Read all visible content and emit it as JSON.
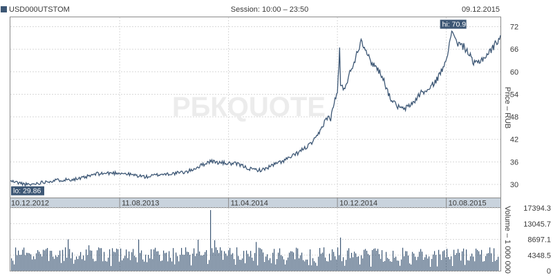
{
  "header": {
    "ticker": "USD000UTSTOM",
    "session": "Session: 10:00 – 23:50",
    "date": "09.12.2015"
  },
  "watermark": "РБКQUOTE",
  "colors": {
    "line": "#3d5775",
    "bars": "#3d5775",
    "date_band": "#c9d3dd",
    "tag_bg": "#3d5775"
  },
  "chart_data": [
    {
      "type": "line",
      "ylabel": "Price – RUB",
      "x_ticks": [
        "10.12.2012",
        "11.08.2013",
        "11.04.2014",
        "10.12.2014",
        "10.08.2015"
      ],
      "y_ticks": [
        30,
        36,
        42,
        48,
        54,
        60,
        66,
        72
      ],
      "ylim": [
        26.5,
        74.5
      ],
      "x_range": [
        "10.12.2012",
        "09.12.2015"
      ],
      "hi_label": "hi: 70.9",
      "lo_label": "lo: 29.86",
      "hi": {
        "x": "2015-08-24",
        "y": 70.9
      },
      "lo": {
        "x": "2013-01-20",
        "y": 29.86
      },
      "series": [
        {
          "points": [
            [
              "2012-12-10",
              30.9
            ],
            [
              "2013-01-20",
              29.86
            ],
            [
              "2013-03-01",
              30.8
            ],
            [
              "2013-04-01",
              31.2
            ],
            [
              "2013-05-15",
              31.5
            ],
            [
              "2013-06-20",
              32.8
            ],
            [
              "2013-07-20",
              33.0
            ],
            [
              "2013-08-11",
              33.1
            ],
            [
              "2013-09-10",
              32.5
            ],
            [
              "2013-10-10",
              32.0
            ],
            [
              "2013-11-10",
              32.7
            ],
            [
              "2013-12-10",
              32.9
            ],
            [
              "2014-01-10",
              33.4
            ],
            [
              "2014-02-01",
              34.6
            ],
            [
              "2014-03-01",
              36.2
            ],
            [
              "2014-03-20",
              35.8
            ],
            [
              "2014-04-11",
              35.6
            ],
            [
              "2014-05-01",
              35.4
            ],
            [
              "2014-06-01",
              34.0
            ],
            [
              "2014-06-25",
              33.8
            ],
            [
              "2014-07-20",
              35.2
            ],
            [
              "2014-08-10",
              36.2
            ],
            [
              "2014-09-01",
              37.5
            ],
            [
              "2014-09-20",
              39.0
            ],
            [
              "2014-10-10",
              40.6
            ],
            [
              "2014-10-25",
              42.5
            ],
            [
              "2014-11-05",
              45.0
            ],
            [
              "2014-11-15",
              47.8
            ],
            [
              "2014-11-25",
              47.5
            ],
            [
              "2014-12-01",
              51.0
            ],
            [
              "2014-12-10",
              54.5
            ],
            [
              "2014-12-15",
              66.0
            ],
            [
              "2014-12-17",
              56.0
            ],
            [
              "2014-12-25",
              55.5
            ],
            [
              "2015-01-05",
              59.0
            ],
            [
              "2015-01-20",
              64.0
            ],
            [
              "2015-02-01",
              68.5
            ],
            [
              "2015-02-10",
              66.5
            ],
            [
              "2015-02-20",
              63.0
            ],
            [
              "2015-03-05",
              61.5
            ],
            [
              "2015-03-20",
              59.0
            ],
            [
              "2015-04-05",
              53.5
            ],
            [
              "2015-04-20",
              51.0
            ],
            [
              "2015-05-05",
              50.0
            ],
            [
              "2015-05-15",
              50.5
            ],
            [
              "2015-05-30",
              52.0
            ],
            [
              "2015-06-15",
              54.5
            ],
            [
              "2015-07-01",
              55.0
            ],
            [
              "2015-07-20",
              58.0
            ],
            [
              "2015-08-01",
              60.5
            ],
            [
              "2015-08-15",
              66.0
            ],
            [
              "2015-08-24",
              70.9
            ],
            [
              "2015-09-05",
              67.5
            ],
            [
              "2015-09-20",
              66.5
            ],
            [
              "2015-10-01",
              64.5
            ],
            [
              "2015-10-10",
              62.0
            ],
            [
              "2015-10-25",
              63.0
            ],
            [
              "2015-11-05",
              64.0
            ],
            [
              "2015-11-20",
              66.0
            ],
            [
              "2015-12-01",
              68.0
            ],
            [
              "2015-12-09",
              69.7
            ]
          ]
        }
      ]
    },
    {
      "type": "bar",
      "ylabel": "Volume – 1 000 000",
      "y_ticks": [
        "0",
        "4348.5",
        "8697.1",
        "13045.7",
        "17394.3"
      ],
      "ylim": [
        0,
        17394.3
      ],
      "typical_range": [
        2500,
        6500
      ],
      "spikes": [
        {
          "x": "2014-03-03",
          "value": 16800
        },
        {
          "x": "2014-12-16",
          "value": 10500
        },
        {
          "x": "2014-02-03",
          "value": 8600
        },
        {
          "x": "2014-12-17",
          "value": 9200
        }
      ]
    }
  ]
}
